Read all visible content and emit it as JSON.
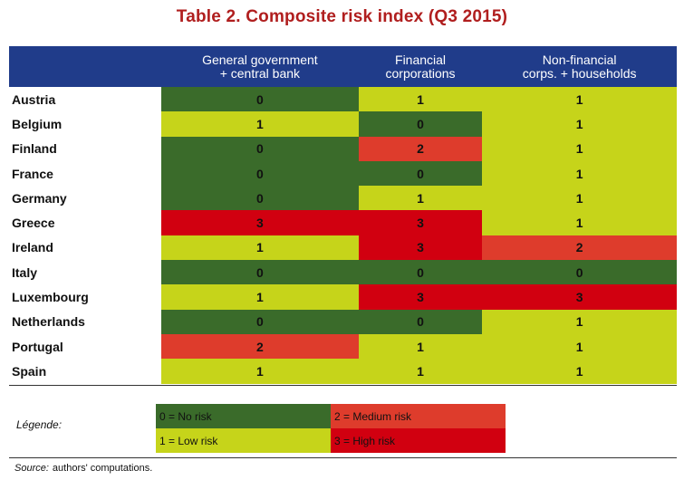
{
  "title": "Table 2. Composite risk index (Q3 2015)",
  "columns": [
    "General government + central bank",
    "Financial corporations",
    "Non-financial corps. + households"
  ],
  "column_lines": [
    [
      "General government",
      "+ central bank"
    ],
    [
      "Financial",
      "corporations"
    ],
    [
      "Non-financial",
      "corps. + households"
    ]
  ],
  "rows": [
    {
      "country": "Austria",
      "values": [
        "0",
        "1",
        "1"
      ]
    },
    {
      "country": "Belgium",
      "values": [
        "1",
        "0",
        "1"
      ]
    },
    {
      "country": "Finland",
      "values": [
        "0",
        "2",
        "1"
      ]
    },
    {
      "country": "France",
      "values": [
        "0",
        "0",
        "1"
      ]
    },
    {
      "country": "Germany",
      "values": [
        "0",
        "1",
        "1"
      ]
    },
    {
      "country": "Greece",
      "values": [
        "3",
        "3",
        "1"
      ]
    },
    {
      "country": "Ireland",
      "values": [
        "1",
        "3",
        "2"
      ]
    },
    {
      "country": "Italy",
      "values": [
        "0",
        "0",
        "0"
      ]
    },
    {
      "country": "Luxembourg",
      "values": [
        "1",
        "3",
        "3"
      ]
    },
    {
      "country": "Netherlands",
      "values": [
        "0",
        "0",
        "1"
      ]
    },
    {
      "country": "Portugal",
      "values": [
        "2",
        "1",
        "1"
      ]
    },
    {
      "country": "Spain",
      "values": [
        "1",
        "1",
        "1"
      ]
    }
  ],
  "risk_colors": {
    "0": "#3a6b2a",
    "1": "#c6d41a",
    "2": "#de3c2c",
    "3": "#d10010"
  },
  "legend": {
    "label": "Légende:",
    "items": [
      {
        "level": "0",
        "text": "0 = No risk"
      },
      {
        "level": "2",
        "text": "2 = Medium risk"
      },
      {
        "level": "1",
        "text": "1 = Low risk"
      },
      {
        "level": "3",
        "text": "3 = High risk"
      }
    ]
  },
  "source": {
    "label": "Source:",
    "text": "authors' computations."
  },
  "colors": {
    "title": "#b01e1e",
    "header_bg": "#203c8a"
  }
}
